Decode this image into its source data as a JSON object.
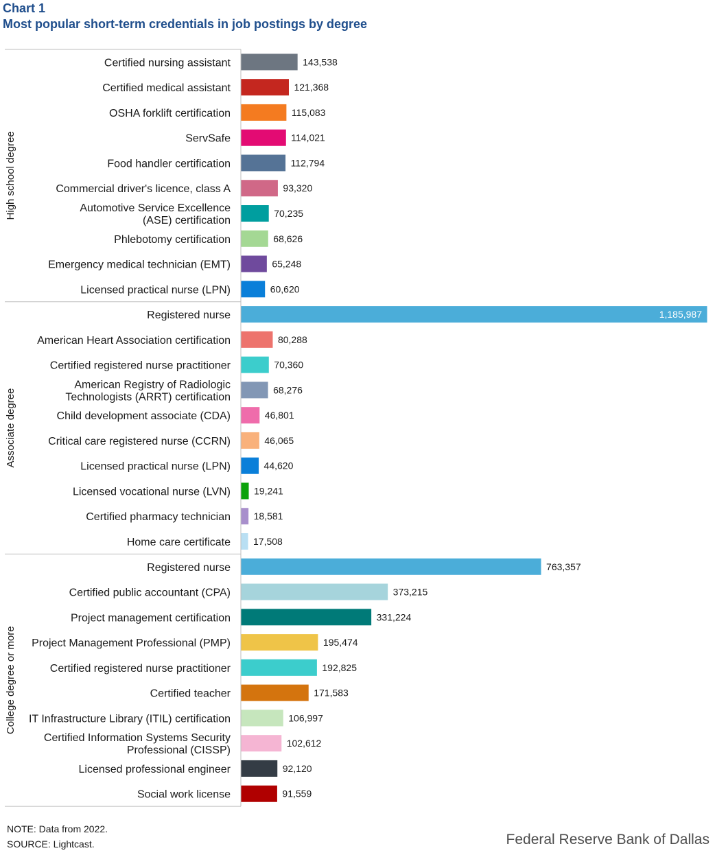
{
  "header": {
    "label": "Chart 1",
    "title": "Most popular short-term credentials in job postings by degree"
  },
  "footer": {
    "note": "NOTE: Data from 2022.",
    "source": "SOURCE: Lightcast.",
    "brand": "Federal Reserve Bank of Dallas"
  },
  "chart_data": {
    "type": "bar",
    "orientation": "horizontal",
    "title": "Most popular short-term credentials in job postings by degree",
    "xlim": [
      0,
      1185987
    ],
    "grid": false,
    "legend": "none",
    "groups": [
      {
        "name": "High school degree",
        "items": [
          {
            "label": [
              "Certified nursing assistant"
            ],
            "value": 143538,
            "value_label": "143,538",
            "color": "#6d7681"
          },
          {
            "label": [
              "Certified medical assistant"
            ],
            "value": 121368,
            "value_label": "121,368",
            "color": "#c4271f"
          },
          {
            "label": [
              "OSHA forklift certification"
            ],
            "value": 115083,
            "value_label": "115,083",
            "color": "#f47b20"
          },
          {
            "label": [
              "ServSafe"
            ],
            "value": 114021,
            "value_label": "114,021",
            "color": "#e30b73"
          },
          {
            "label": [
              "Food handler certification"
            ],
            "value": 112794,
            "value_label": "112,794",
            "color": "#557396"
          },
          {
            "label": [
              "Commercial driver's licence, class A"
            ],
            "value": 93320,
            "value_label": "93,320",
            "color": "#d06887"
          },
          {
            "label": [
              "Automotive Service Excellence",
              "(ASE) certification"
            ],
            "value": 70235,
            "value_label": "70,235",
            "color": "#009e9f"
          },
          {
            "label": [
              "Phlebotomy certification"
            ],
            "value": 68626,
            "value_label": "68,626",
            "color": "#a4d894"
          },
          {
            "label": [
              "Emergency medical technician (EMT)"
            ],
            "value": 65248,
            "value_label": "65,248",
            "color": "#6f4a9d"
          },
          {
            "label": [
              "Licensed practical nurse (LPN)"
            ],
            "value": 60620,
            "value_label": "60,620",
            "color": "#0a7fd9"
          }
        ]
      },
      {
        "name": "Associate degree",
        "items": [
          {
            "label": [
              "Registered nurse"
            ],
            "value": 1185987,
            "value_label": "1,185,987",
            "color": "#4badd9",
            "label_inside": true
          },
          {
            "label": [
              "American Heart Association certification"
            ],
            "value": 80288,
            "value_label": "80,288",
            "color": "#ed736d"
          },
          {
            "label": [
              "Certified registered nurse practitioner"
            ],
            "value": 70360,
            "value_label": "70,360",
            "color": "#3ccdcc"
          },
          {
            "label": [
              "American Registry of Radiologic",
              "Technologists (ARRT) certification"
            ],
            "value": 68276,
            "value_label": "68,276",
            "color": "#8297b5"
          },
          {
            "label": [
              "Child development associate (CDA)"
            ],
            "value": 46801,
            "value_label": "46,801",
            "color": "#ef6cab"
          },
          {
            "label": [
              "Critical care registered nurse (CCRN)"
            ],
            "value": 46065,
            "value_label": "46,065",
            "color": "#f9b17b"
          },
          {
            "label": [
              "Licensed practical nurse (LPN)"
            ],
            "value": 44620,
            "value_label": "44,620",
            "color": "#0a7fd9"
          },
          {
            "label": [
              "Licensed vocational nurse (LVN)"
            ],
            "value": 19241,
            "value_label": "19,241",
            "color": "#0ca20c"
          },
          {
            "label": [
              "Certified pharmacy technician"
            ],
            "value": 18581,
            "value_label": "18,581",
            "color": "#a88fcc"
          },
          {
            "label": [
              "Home care certificate"
            ],
            "value": 17508,
            "value_label": "17,508",
            "color": "#b9dff3"
          }
        ]
      },
      {
        "name": "College degree or more",
        "items": [
          {
            "label": [
              "Registered nurse"
            ],
            "value": 763357,
            "value_label": "763,357",
            "color": "#4badd9"
          },
          {
            "label": [
              "Certified public accountant (CPA)"
            ],
            "value": 373215,
            "value_label": "373,215",
            "color": "#a6d4dc"
          },
          {
            "label": [
              "Project management certification"
            ],
            "value": 331224,
            "value_label": "331,224",
            "color": "#007a78"
          },
          {
            "label": [
              "Project Management Professional (PMP)"
            ],
            "value": 195474,
            "value_label": "195,474",
            "color": "#efc448"
          },
          {
            "label": [
              "Certified registered nurse practitioner"
            ],
            "value": 192825,
            "value_label": "192,825",
            "color": "#3ccdcc"
          },
          {
            "label": [
              "Certified teacher"
            ],
            "value": 171583,
            "value_label": "171,583",
            "color": "#d4740e"
          },
          {
            "label": [
              "IT Infrastructure Library (ITIL) certification"
            ],
            "value": 106997,
            "value_label": "106,997",
            "color": "#c6e6bd"
          },
          {
            "label": [
              "Certified Information Systems Security",
              "Professional (CISSP)"
            ],
            "value": 102612,
            "value_label": "102,612",
            "color": "#f5b5d3"
          },
          {
            "label": [
              "Licensed professional engineer"
            ],
            "value": 92120,
            "value_label": "92,120",
            "color": "#343c45"
          },
          {
            "label": [
              "Social work license"
            ],
            "value": 91559,
            "value_label": "91,559",
            "color": "#b00000"
          }
        ]
      }
    ]
  }
}
